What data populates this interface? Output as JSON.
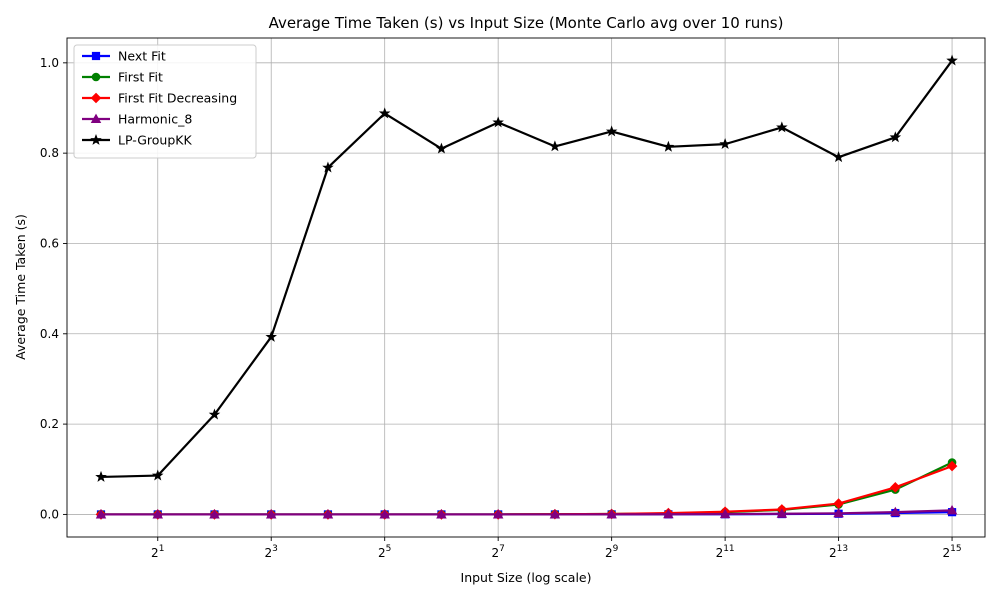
{
  "chart_data": {
    "type": "line",
    "title": "Average Time Taken (s) vs Input Size (Monte Carlo avg over 10 runs)",
    "xlabel": "Input Size (log scale)",
    "ylabel": "Average Time Taken (s)",
    "x_scale": "log2",
    "x": [
      1,
      2,
      4,
      8,
      16,
      32,
      64,
      128,
      256,
      512,
      1024,
      2048,
      4096,
      8192,
      16384,
      32768
    ],
    "x_ticks": [
      {
        "value": 2,
        "base": "2",
        "exp": "1"
      },
      {
        "value": 8,
        "base": "2",
        "exp": "3"
      },
      {
        "value": 32,
        "base": "2",
        "exp": "5"
      },
      {
        "value": 128,
        "base": "2",
        "exp": "7"
      },
      {
        "value": 512,
        "base": "2",
        "exp": "9"
      },
      {
        "value": 2048,
        "base": "2",
        "exp": "11"
      },
      {
        "value": 8192,
        "base": "2",
        "exp": "13"
      },
      {
        "value": 32768,
        "base": "2",
        "exp": "15"
      }
    ],
    "xlim": [
      0.66,
      49000
    ],
    "ylim": [
      -0.05,
      1.055
    ],
    "y_ticks": [
      {
        "value": 0.0,
        "label": "0.0"
      },
      {
        "value": 0.2,
        "label": "0.2"
      },
      {
        "value": 0.4,
        "label": "0.4"
      },
      {
        "value": 0.6,
        "label": "0.6"
      },
      {
        "value": 0.8,
        "label": "0.8"
      },
      {
        "value": 1.0,
        "label": "1.0"
      }
    ],
    "grid": true,
    "legend": "top-left",
    "series": [
      {
        "name": "Next Fit",
        "color": "#0000ff",
        "marker": "square",
        "values": [
          0,
          0,
          0,
          0,
          0,
          0,
          0,
          0,
          0,
          0.0001,
          0.0002,
          0.0004,
          0.0008,
          0.0015,
          0.003,
          0.005
        ]
      },
      {
        "name": "First Fit",
        "color": "#008000",
        "marker": "circle",
        "values": [
          0,
          0,
          0,
          0,
          0,
          0,
          0,
          0,
          0.0005,
          0.001,
          0.002,
          0.005,
          0.01,
          0.022,
          0.055,
          0.115
        ]
      },
      {
        "name": "First Fit Decreasing",
        "color": "#ff0000",
        "marker": "diamond",
        "values": [
          0,
          0,
          0,
          0,
          0,
          0,
          0,
          0,
          0.0005,
          0.001,
          0.003,
          0.006,
          0.011,
          0.024,
          0.06,
          0.107
        ]
      },
      {
        "name": "Harmonic_8",
        "color": "#800080",
        "marker": "triangle",
        "values": [
          0,
          0,
          0,
          0,
          0,
          0,
          0,
          0,
          0,
          0.0002,
          0.0004,
          0.0008,
          0.0015,
          0.0025,
          0.005,
          0.009
        ]
      },
      {
        "name": "LP-GroupKK",
        "color": "#000000",
        "marker": "star",
        "values": [
          0.083,
          0.086,
          0.221,
          0.393,
          0.768,
          0.888,
          0.81,
          0.868,
          0.815,
          0.848,
          0.814,
          0.82,
          0.857,
          0.791,
          0.835,
          1.005
        ]
      }
    ]
  }
}
